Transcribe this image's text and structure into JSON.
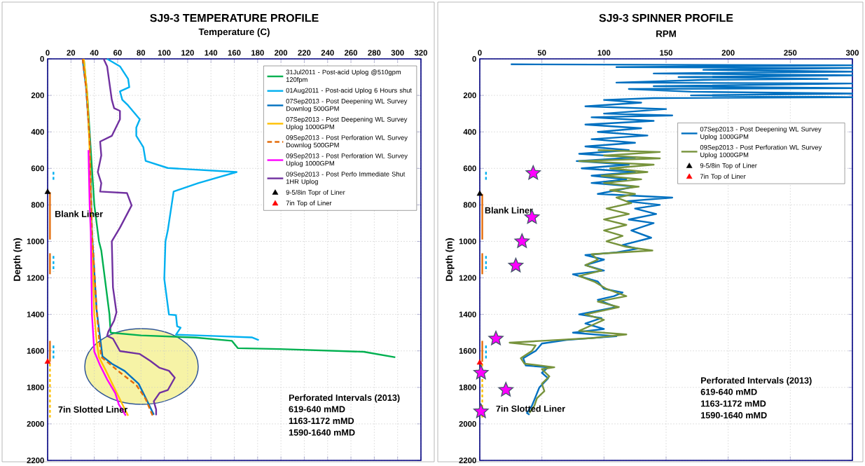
{
  "chart_data": [
    {
      "type": "line",
      "title": "SJ9-3 TEMPERATURE  PROFILE",
      "xlabel": "Temperature (C)",
      "ylabel": "Depth (m)",
      "xlim": [
        0,
        320
      ],
      "xticks": [
        0,
        20,
        40,
        60,
        80,
        100,
        120,
        140,
        160,
        180,
        200,
        220,
        240,
        260,
        280,
        300,
        320
      ],
      "ylim": [
        2200,
        0
      ],
      "yticks": [
        0,
        200,
        400,
        600,
        800,
        1000,
        1200,
        1400,
        1600,
        1800,
        2000,
        2200
      ],
      "grid": true,
      "legend": "top right",
      "series": [
        {
          "name": "31Jul2011 - Post-acid Uplog @510gpm 120fpm",
          "color": "#00b050",
          "x": [
            31,
            34,
            36,
            38,
            40,
            43,
            44,
            46,
            49,
            53,
            54,
            80,
            127,
            158,
            163,
            199,
            271,
            298
          ],
          "values": [
            0,
            200,
            400,
            600,
            800,
            950,
            1000,
            1050,
            1200,
            1400,
            1500,
            1515,
            1527,
            1545,
            1585,
            1590,
            1605,
            1635
          ]
        },
        {
          "name": "01Aug2011 - Post-acid Uplog 6 Hours shut",
          "color": "#00b0f0",
          "x": [
            51,
            62,
            69,
            70,
            62,
            64,
            69,
            79,
            76,
            76,
            82,
            84,
            103,
            162,
            129,
            108,
            103,
            101,
            100,
            104,
            110,
            111,
            114,
            110,
            141,
            175,
            181
          ],
          "values": [
            0,
            41,
            110,
            155,
            178,
            224,
            255,
            331,
            376,
            422,
            483,
            559,
            598,
            620,
            681,
            727,
            940,
            1000,
            1206,
            1401,
            1404,
            1465,
            1473,
            1511,
            1518,
            1526,
            1541
          ]
        },
        {
          "name": "07Sep2013 - Post Deepening WL Survey Downlog 500GPM",
          "color": "#0070c0",
          "x": [
            30,
            33,
            36,
            38,
            42,
            45,
            47,
            55,
            66,
            78,
            85,
            91
          ],
          "values": [
            0,
            160,
            440,
            950,
            1375,
            1530,
            1630,
            1670,
            1710,
            1780,
            1870,
            1950
          ]
        },
        {
          "name": "07Sep2013 - Post Deepening WL Survey Uplog 1000GPM",
          "color": "#ffc000",
          "x": [
            31,
            34,
            36,
            37,
            38,
            40,
            42,
            44,
            50,
            57,
            64,
            69
          ],
          "values": [
            0,
            200,
            500,
            800,
            1000,
            1400,
            1550,
            1634,
            1709,
            1801,
            1892,
            1955
          ]
        },
        {
          "name": "09Sep2013 - Post Perforation WL Survey Downlog 500GPM",
          "color": "#e46c0a",
          "line_style": "dashed",
          "x": [
            30,
            33,
            36,
            38,
            42,
            44,
            46,
            52,
            62,
            76,
            84,
            90
          ],
          "values": [
            0,
            163,
            437,
            947,
            1375,
            1527,
            1634,
            1665,
            1718,
            1787,
            1863,
            1955
          ]
        },
        {
          "name": "09Sep2013 - Post Perforation WL Survey Uplog 1000GPM",
          "color": "#ff00ff",
          "x": [
            35,
            36,
            37,
            38,
            40,
            45,
            51,
            58,
            61,
            67
          ],
          "values": [
            500,
            800,
            947,
            1404,
            1604,
            1680,
            1756,
            1832,
            1893,
            1955
          ]
        },
        {
          "name": "09Sep2013 - Post Perfo Immediate Shut 1HR Uplog",
          "color": "#7030a0",
          "x": [
            48,
            51,
            55,
            57,
            62,
            62,
            55,
            45,
            46,
            43,
            46,
            45,
            68,
            72,
            62,
            55,
            56,
            59,
            57,
            52,
            51,
            56,
            62,
            79,
            88,
            96,
            104,
            109,
            103,
            96,
            91,
            93,
            93
          ],
          "values": [
            0,
            41,
            224,
            270,
            285,
            331,
            422,
            453,
            529,
            620,
            681,
            727,
            735,
            803,
            925,
            1000,
            1252,
            1389,
            1434,
            1495,
            1518,
            1533,
            1601,
            1617,
            1655,
            1693,
            1709,
            1747,
            1815,
            1830,
            1876,
            1921,
            1952
          ]
        },
        {
          "name": "9-5/8in Topr of Liner",
          "type": "scatter",
          "marker": "triangle",
          "color": "#000000",
          "x": [
            0
          ],
          "values": [
            730
          ]
        },
        {
          "name": "7in Top of Liner",
          "type": "scatter",
          "marker": "triangle",
          "color": "#ff0000",
          "x": [
            0
          ],
          "values": [
            1660
          ]
        },
        {
          "color": "#e46c0a",
          "x": [
            2,
            2
          ],
          "values": [
            730,
            990
          ]
        },
        {
          "color": "#e46c0a",
          "x": [
            2,
            2
          ],
          "values": [
            1065,
            1180
          ]
        },
        {
          "color": "#e46c0a",
          "x": [
            2,
            2
          ],
          "values": [
            1545,
            1660
          ]
        },
        {
          "color": "#00b0f0",
          "line_style": "dotted",
          "x": [
            5,
            5
          ],
          "values": [
            619,
            672
          ]
        },
        {
          "color": "#00b0f0",
          "line_style": "dotted",
          "x": [
            5,
            5
          ],
          "values": [
            1080,
            1165
          ]
        },
        {
          "color": "#00b0f0",
          "line_style": "dotted",
          "x": [
            5,
            5
          ],
          "values": [
            1570,
            1655
          ]
        },
        {
          "color": "#ffc000",
          "line_style": "dotted",
          "x": [
            2,
            2
          ],
          "values": [
            1670,
            1965
          ]
        }
      ],
      "annotations": [
        "Blank Liner",
        "7in Slotted Liner",
        "Perforated Intervals (2013)",
        "619-640 mMD",
        "1163-1172 mMD",
        "1590-1640 mMD"
      ]
    },
    {
      "type": "line",
      "title": "SJ9-3 SPINNER  PROFILE",
      "xlabel": "RPM",
      "ylabel": "Depth (m)",
      "xlim": [
        0,
        300
      ],
      "xticks": [
        0,
        50,
        100,
        150,
        200,
        250,
        300
      ],
      "ylim": [
        2200,
        0
      ],
      "yticks": [
        0,
        200,
        400,
        600,
        800,
        1000,
        1200,
        1400,
        1600,
        1800,
        2000,
        2200
      ],
      "grid": true,
      "legend": "top right",
      "series": [
        {
          "name": "07Sep2013 - Post Deepening WL Survey Uplog 1000GPM",
          "color": "#0070c0",
          "x": [
            25,
            300,
            110,
            300,
            180,
            300,
            140,
            300,
            160,
            280,
            180,
            110,
            300,
            140,
            300,
            120,
            170,
            300,
            170,
            300,
            140,
            100,
            130,
            85,
            150,
            100,
            155,
            90,
            140,
            85,
            130,
            95,
            135,
            90,
            125,
            85,
            120,
            80,
            125,
            78,
            120,
            82,
            125,
            90,
            118,
            90,
            125,
            95,
            155,
            118,
            145,
            125,
            142,
            120,
            140,
            122,
            138,
            115,
            127,
            110,
            85,
            100,
            85,
            100,
            75,
            95,
            100,
            115,
            108,
            95,
            110,
            80,
            98,
            85,
            100,
            75,
            110,
            70,
            50,
            45,
            35,
            37,
            55,
            50,
            55,
            48,
            45,
            42,
            38,
            40
          ],
          "values": [
            30,
            35,
            45,
            50,
            60,
            70,
            80,
            90,
            100,
            110,
            115,
            130,
            135,
            150,
            160,
            165,
            180,
            190,
            200,
            210,
            215,
            225,
            240,
            260,
            275,
            300,
            310,
            320,
            340,
            360,
            380,
            400,
            420,
            440,
            460,
            480,
            500,
            520,
            540,
            560,
            580,
            600,
            620,
            640,
            660,
            680,
            700,
            740,
            760,
            780,
            800,
            820,
            850,
            880,
            900,
            940,
            980,
            1020,
            1040,
            1060,
            1075,
            1100,
            1130,
            1160,
            1180,
            1220,
            1260,
            1280,
            1300,
            1320,
            1360,
            1400,
            1420,
            1450,
            1480,
            1500,
            1520,
            1540,
            1560,
            1600,
            1640,
            1680,
            1690,
            1720,
            1750,
            1800,
            1850,
            1900,
            1940,
            1950
          ]
        },
        {
          "name": "09Sep2013 - Post Perforation WL Survey Uplog 1000GPM",
          "color": "#77933c",
          "x": [
            95,
            145,
            100,
            145,
            80,
            140,
            105,
            135,
            98,
            130,
            100,
            128,
            105,
            125,
            110,
            122,
            102,
            120,
            100,
            118,
            100,
            115,
            102,
            118,
            139,
            90,
            95,
            85,
            98,
            80,
            92,
            102,
            118,
            95,
            112,
            85,
            100,
            90,
            80,
            118,
            90,
            50,
            24,
            45,
            42,
            33,
            36,
            60,
            50,
            56,
            50,
            52,
            46,
            44,
            40
          ],
          "values": [
            500,
            510,
            530,
            545,
            560,
            580,
            600,
            620,
            640,
            660,
            680,
            700,
            720,
            740,
            760,
            790,
            820,
            850,
            880,
            910,
            940,
            970,
            1000,
            1030,
            1050,
            1070,
            1100,
            1130,
            1160,
            1190,
            1220,
            1260,
            1300,
            1330,
            1360,
            1400,
            1430,
            1460,
            1490,
            1510,
            1530,
            1545,
            1555,
            1570,
            1600,
            1640,
            1670,
            1690,
            1700,
            1740,
            1780,
            1820,
            1860,
            1900,
            1940
          ]
        },
        {
          "name": "9-5/8in Top of Liner",
          "type": "scatter",
          "marker": "triangle",
          "color": "#000000",
          "x": [
            0
          ],
          "values": [
            740
          ]
        },
        {
          "name": "7in Top of Liner",
          "type": "scatter",
          "marker": "triangle",
          "color": "#ff0000",
          "x": [
            0
          ],
          "values": [
            1665
          ]
        },
        {
          "type": "scatter",
          "marker": "star",
          "color": "#ff00ff",
          "x": [
            43,
            42,
            34,
            29,
            13,
            1,
            21,
            1
          ],
          "values": [
            626,
            868,
            1000,
            1133,
            1533,
            1720,
            1814,
            1932
          ]
        },
        {
          "color": "#e46c0a",
          "x": [
            2,
            2
          ],
          "values": [
            740,
            990
          ]
        },
        {
          "color": "#e46c0a",
          "x": [
            2,
            2
          ],
          "values": [
            1065,
            1180
          ]
        },
        {
          "color": "#e46c0a",
          "x": [
            2,
            2
          ],
          "values": [
            1545,
            1660
          ]
        },
        {
          "color": "#00b0f0",
          "line_style": "dotted",
          "x": [
            5,
            5
          ],
          "values": [
            619,
            672
          ]
        },
        {
          "color": "#00b0f0",
          "line_style": "dotted",
          "x": [
            5,
            5
          ],
          "values": [
            1080,
            1165
          ]
        },
        {
          "color": "#00b0f0",
          "line_style": "dotted",
          "x": [
            5,
            5
          ],
          "values": [
            1570,
            1655
          ]
        },
        {
          "color": "#ffc000",
          "line_style": "dotted",
          "x": [
            2,
            2
          ],
          "values": [
            1670,
            1965
          ]
        }
      ],
      "annotations": [
        "Blank Liner",
        "7in Slotted Liner",
        "Perforated Intervals (2013)",
        "619-640 mMD",
        "1163-1172 mMD",
        "1590-1640 mMD"
      ]
    }
  ]
}
